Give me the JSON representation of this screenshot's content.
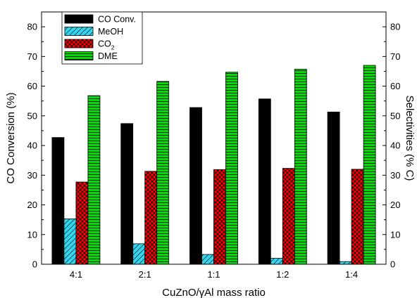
{
  "chart_data": {
    "type": "bar",
    "title": "",
    "xlabel": "CuZnO/γAl mass ratio",
    "ylabel": "CO Conversion (%)",
    "ylabel_right": "Selectivities (% C)",
    "categories": [
      "4:1",
      "2:1",
      "1:1",
      "1:2",
      "1:4"
    ],
    "ylim": [
      0,
      85
    ],
    "yticks": [
      0,
      10,
      20,
      30,
      40,
      50,
      60,
      70,
      80
    ],
    "grid": false,
    "legend_position": "top-left",
    "series": [
      {
        "name": "CO Conv.",
        "values": [
          42.7,
          47.4,
          52.8,
          55.7,
          51.3
        ],
        "axis": "left",
        "color": "#000000",
        "pattern": "solid"
      },
      {
        "name": "MeOH",
        "values": [
          15.3,
          6.9,
          3.3,
          2.0,
          0.9
        ],
        "axis": "right",
        "color": "#33d6ee",
        "pattern": "diagonal"
      },
      {
        "name": "CO",
        "name_sub": "2",
        "values": [
          27.7,
          31.3,
          31.9,
          32.3,
          32.0
        ],
        "axis": "right",
        "color": "#ff0000",
        "pattern": "crosshatch"
      },
      {
        "name": "DME",
        "values": [
          56.8,
          61.6,
          64.7,
          65.7,
          67.0
        ],
        "axis": "right",
        "color": "#00dd00",
        "pattern": "horizontal"
      }
    ]
  }
}
